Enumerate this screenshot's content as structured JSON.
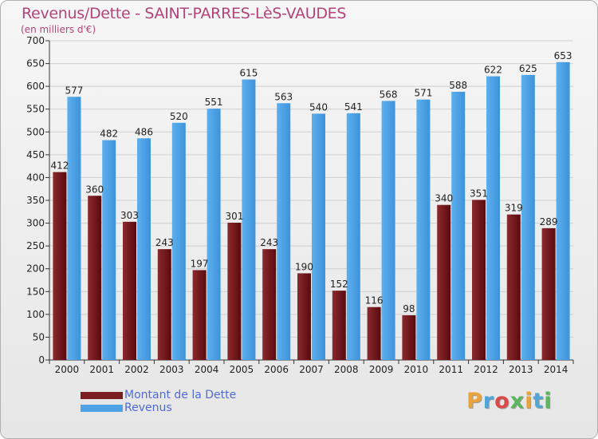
{
  "header": {
    "title": "Revenus/Dette - SAINT-PARRES-LèS-VAUDES",
    "subtitle": "(en milliers d'€)"
  },
  "legend": {
    "items": [
      {
        "label": "Montant de la Dette",
        "color": "#7a1e22"
      },
      {
        "label": "Revenus",
        "color": "#4da3e6"
      }
    ]
  },
  "logo": {
    "text": "Proxiti",
    "colors": [
      "#e8a33a",
      "#4fa6d8",
      "#d94a4a",
      "#5bb65b",
      "#e8a33a",
      "#4fa6d8",
      "#5bb65b"
    ]
  },
  "colors": {
    "debt": "#7a1e22",
    "debt_dark": "#4a0508",
    "revenue": "#56aaea",
    "revenue_dark": "#2a78c0",
    "grid": "#cfcfcf"
  },
  "chart_data": {
    "type": "bar",
    "title": "Revenus/Dette - SAINT-PARRES-LèS-VAUDES",
    "subtitle": "(en milliers d'€)",
    "categories": [
      "2000",
      "2001",
      "2002",
      "2003",
      "2004",
      "2005",
      "2006",
      "2007",
      "2008",
      "2009",
      "2010",
      "2011",
      "2012",
      "2013",
      "2014"
    ],
    "series": [
      {
        "name": "Montant de la Dette",
        "values": [
          412,
          360,
          303,
          243,
          197,
          301,
          243,
          190,
          152,
          116,
          98,
          340,
          351,
          319,
          289
        ],
        "labels": [
          "412",
          "360",
          "303",
          "243",
          "197",
          "301",
          "243",
          "190",
          "152",
          "116",
          "98",
          "340",
          "351",
          "319",
          "289"
        ]
      },
      {
        "name": "Revenus",
        "values": [
          577,
          482,
          486,
          520,
          551,
          615,
          563,
          540,
          541,
          568,
          571,
          588,
          622,
          625,
          653
        ],
        "labels": [
          "577",
          "482",
          "486",
          "520",
          "551",
          "615",
          "563",
          "540",
          "541",
          "568",
          "571",
          "588",
          "622",
          "625",
          "653"
        ]
      }
    ],
    "ylim": [
      0,
      700
    ],
    "yticks": [
      "0",
      "50",
      "100",
      "150",
      "200",
      "250",
      "300",
      "350",
      "400",
      "450",
      "500",
      "550",
      "600",
      "650",
      "700"
    ],
    "grid": true,
    "legend_position": "bottom-left"
  }
}
